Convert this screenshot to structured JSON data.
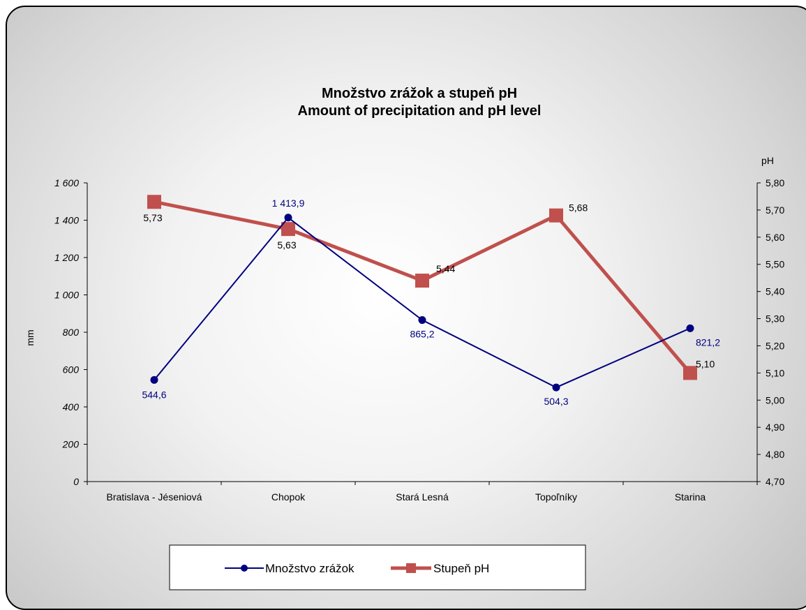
{
  "chart_data": {
    "type": "line",
    "title": "Množstvo zrážok a stupeň pH",
    "subtitle": "Amount of precipitation and pH level",
    "categories": [
      "Bratislava - Jéseniová",
      "Chopok",
      "Stará Lesná",
      "Topoľníky",
      "Starina"
    ],
    "y_left": {
      "label": "mm",
      "range": [
        0,
        1600
      ],
      "ticks": [
        0,
        200,
        400,
        600,
        800,
        1000,
        1200,
        1400,
        1600
      ],
      "tick_labels": [
        "0",
        "200",
        "400",
        "600",
        "800",
        "1 000",
        "1 200",
        "1 400",
        "1 600"
      ]
    },
    "y_right": {
      "label": "pH",
      "range": [
        4.7,
        5.8
      ],
      "ticks": [
        4.7,
        4.8,
        4.9,
        5.0,
        5.1,
        5.2,
        5.3,
        5.4,
        5.5,
        5.6,
        5.7,
        5.8
      ],
      "tick_labels": [
        "4,70",
        "4,80",
        "4,90",
        "5,00",
        "5,10",
        "5,20",
        "5,30",
        "5,40",
        "5,50",
        "5,60",
        "5,70",
        "5,80"
      ]
    },
    "series": [
      {
        "name": "Množstvo zrážok",
        "axis": "left",
        "color": "#000080",
        "marker": "circle",
        "values": [
          544.6,
          1413.9,
          865.2,
          504.3,
          821.2
        ],
        "labels": [
          "544,6",
          "1 413,9",
          "865,2",
          "504,3",
          "821,2"
        ]
      },
      {
        "name": "Stupeň pH",
        "axis": "right",
        "color": "#C0504D",
        "marker": "square",
        "values": [
          5.73,
          5.63,
          5.44,
          5.68,
          5.1
        ],
        "labels": [
          "5,73",
          "5,63",
          "5,44",
          "5,68",
          "5,10"
        ]
      }
    ],
    "grid": false,
    "legend": "bottom"
  }
}
